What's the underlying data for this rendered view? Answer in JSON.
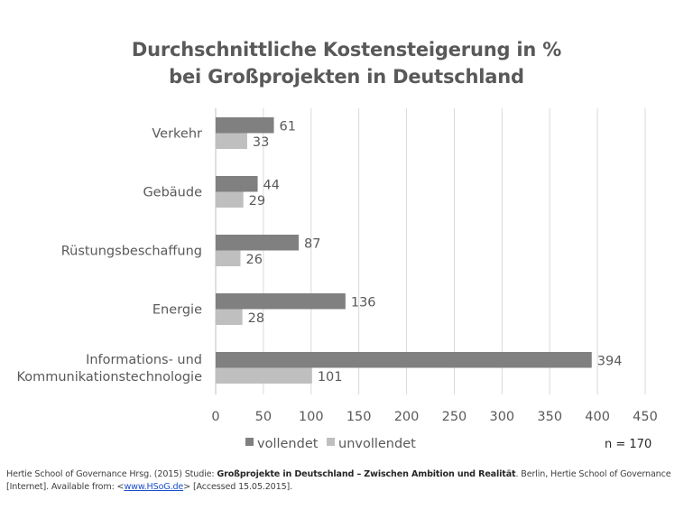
{
  "chart_data": {
    "type": "bar",
    "orientation": "horizontal",
    "title": "Durchschnittliche Kostensteigerung in % bei Großprojekten in Deutschland",
    "title_lines": [
      "Durchschnittliche Kostensteigerung in %",
      "bei Großprojekten in Deutschland"
    ],
    "categories": [
      "Verkehr",
      "Gebäude",
      "Rüstungsbeschaffung",
      "Energie",
      "Informations- und Kommunikationstechnologie"
    ],
    "category_lines": [
      [
        "Verkehr"
      ],
      [
        "Gebäude"
      ],
      [
        "Rüstungsbeschaffung"
      ],
      [
        "Energie"
      ],
      [
        "Informations- und",
        "Kommunikationstechnologie"
      ]
    ],
    "series": [
      {
        "name": "vollendet",
        "color": "#808080",
        "values": [
          61,
          44,
          87,
          136,
          394
        ]
      },
      {
        "name": "unvollendet",
        "color": "#bfbfbf",
        "values": [
          33,
          29,
          26,
          28,
          101
        ]
      }
    ],
    "xlabel": "",
    "ylabel": "",
    "xlim": [
      0,
      450
    ],
    "xticks": [
      0,
      50,
      100,
      150,
      200,
      250,
      300,
      350,
      400,
      450
    ],
    "grid": true,
    "grid_color": "#d9d9d9",
    "legend_position": "bottom-left",
    "annotation": "n = 170"
  },
  "source": {
    "prefix": "Hertie School of Governance Hrsg. (2015) Studie: ",
    "bold_title": "Großprojekte in Deutschland – Zwischen Ambition und Realität",
    "suffix": ". Berlin, Hertie School of Governance",
    "line2_prefix": "[Internet]. Available from: <",
    "link_text": "www.HSoG.de",
    "line2_suffix": "> [Accessed 15.05.2015]."
  }
}
